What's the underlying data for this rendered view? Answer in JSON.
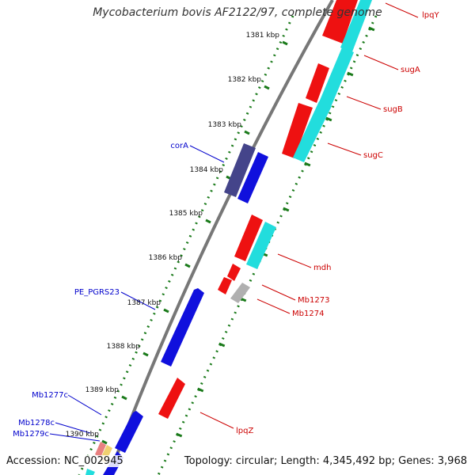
{
  "title": "Mycobacterium bovis AF2122/97, complete genome",
  "accession_text": "Accession: NC_002945",
  "topology_text": "Topology: circular; Length: 4,345,492 bp; Genes: 3,968",
  "colors": {
    "backbone": "#8c8c8c",
    "tick": "#1a7a1a",
    "label_forward": "#0000cc",
    "label_reverse": "#cc0000",
    "cds_red": "#ee1111",
    "cds_blue": "#1010dd",
    "cds_navy": "#44448a",
    "cds_cyan": "#22dddd",
    "cds_gray": "#b0b0b0"
  },
  "kbp_labels": [
    "1381 kbp",
    "1382 kbp",
    "1383 kbp",
    "1384 kbp",
    "1385 kbp",
    "1386 kbp",
    "1387 kbp",
    "1388 kbp",
    "1389 kbp",
    "1390 kbp"
  ],
  "gene_labels": [
    {
      "text": "lpqY",
      "strand": "reverse"
    },
    {
      "text": "sugA",
      "strand": "reverse"
    },
    {
      "text": "sugB",
      "strand": "reverse"
    },
    {
      "text": "sugC",
      "strand": "reverse"
    },
    {
      "text": "corA",
      "strand": "forward"
    },
    {
      "text": "mdh",
      "strand": "reverse"
    },
    {
      "text": "Mb1273",
      "strand": "reverse"
    },
    {
      "text": "Mb1274",
      "strand": "reverse"
    },
    {
      "text": "PE_PGRS23",
      "strand": "forward"
    },
    {
      "text": "lpqZ",
      "strand": "reverse"
    },
    {
      "text": "Mb1277c",
      "strand": "forward"
    },
    {
      "text": "Mb1278c",
      "strand": "forward"
    },
    {
      "text": "Mb1279c",
      "strand": "forward"
    }
  ]
}
